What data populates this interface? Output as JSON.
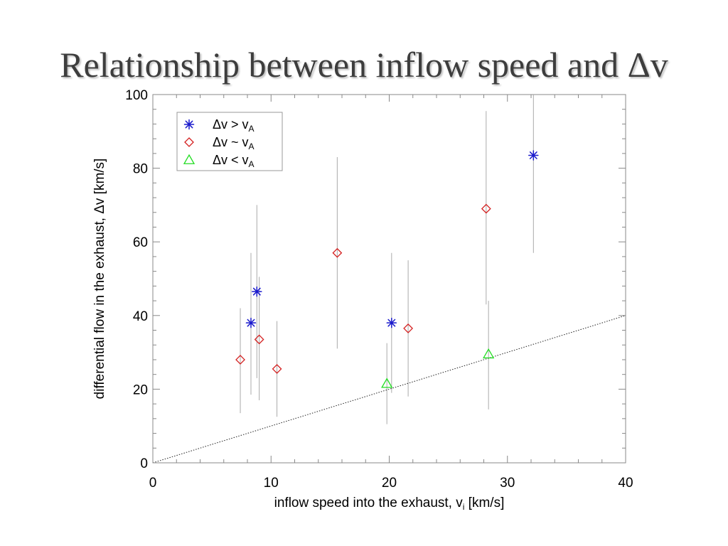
{
  "slide": {
    "title": "Relationship between inflow speed and Δv"
  },
  "chart_data": {
    "type": "scatter",
    "xlabel": "inflow speed into the exhaust, v",
    "xlabel_sub": "i",
    "xlabel_suffix": " [km/s]",
    "ylabel": "differential flow in the exhaust, Δv [km/s]",
    "xlim": [
      0,
      40
    ],
    "ylim": [
      0,
      100
    ],
    "xticks": [
      0,
      10,
      20,
      30,
      40
    ],
    "yticks": [
      0,
      20,
      40,
      60,
      80,
      100
    ],
    "grid": false,
    "legend_position": "top-left",
    "reference_line": {
      "style": "dotted",
      "points": [
        [
          0,
          0
        ],
        [
          40,
          40
        ]
      ]
    },
    "series": [
      {
        "name": "Δv > v",
        "name_sub": "A",
        "marker": "asterisk",
        "color": "#1a1acc",
        "points": [
          {
            "x": 8.3,
            "y": 38,
            "ylow": 18.5,
            "yhigh": 57
          },
          {
            "x": 8.8,
            "y": 46.5,
            "ylow": 23,
            "yhigh": 70
          },
          {
            "x": 20.2,
            "y": 38,
            "ylow": 19,
            "yhigh": 57
          },
          {
            "x": 32.2,
            "y": 83.5,
            "ylow": 57,
            "yhigh": 100
          }
        ]
      },
      {
        "name": "Δv ~ v",
        "name_sub": "A",
        "marker": "diamond",
        "color": "#d42020",
        "points": [
          {
            "x": 7.4,
            "y": 28,
            "ylow": 13.5,
            "yhigh": 42
          },
          {
            "x": 9.0,
            "y": 33.5,
            "ylow": 17,
            "yhigh": 50.5
          },
          {
            "x": 10.5,
            "y": 25.5,
            "ylow": 12.5,
            "yhigh": 38.5
          },
          {
            "x": 15.6,
            "y": 57,
            "ylow": 31,
            "yhigh": 83
          },
          {
            "x": 21.6,
            "y": 36.5,
            "ylow": 18,
            "yhigh": 55
          },
          {
            "x": 28.2,
            "y": 69,
            "ylow": 43,
            "yhigh": 95.5
          }
        ]
      },
      {
        "name": "Δv < v",
        "name_sub": "A",
        "marker": "triangle",
        "color": "#22dd22",
        "points": [
          {
            "x": 19.8,
            "y": 21.5,
            "ylow": 10.5,
            "yhigh": 32.5
          },
          {
            "x": 28.4,
            "y": 29.5,
            "ylow": 14.5,
            "yhigh": 44
          }
        ]
      }
    ]
  }
}
